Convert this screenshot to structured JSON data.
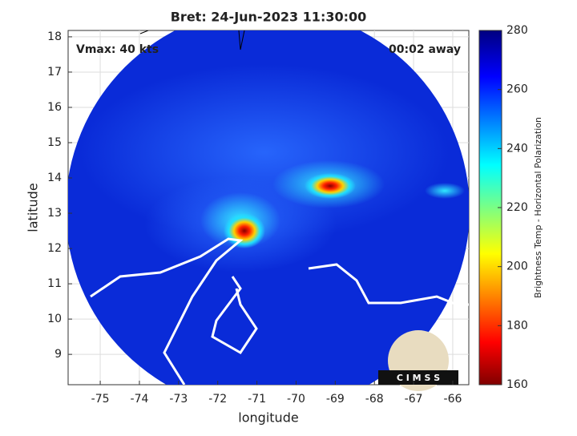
{
  "chart_data": {
    "type": "map",
    "title": "Bret: 24-Jun-2023 11:30:00",
    "xlabel": "longitude",
    "ylabel": "latitude",
    "annotations": [
      "Vmax: 40 kts",
      "00:02 away"
    ],
    "xlim": [
      -75.82,
      -65.59
    ],
    "ylim": [
      8.14,
      18.18
    ],
    "xticks": [
      -75,
      -74,
      -73,
      -72,
      -71,
      -70,
      -69,
      -68,
      -67,
      -66
    ],
    "yticks": [
      9,
      10,
      11,
      12,
      13,
      14,
      15,
      16,
      17,
      18
    ],
    "grid": true,
    "colorbar": {
      "label": "Brightness Temp - Horizontal Polarization",
      "lim": [
        160,
        280
      ],
      "ticks": [
        160,
        180,
        200,
        220,
        240,
        260,
        280
      ],
      "colormap": "jet"
    },
    "logo_text": "C I M S S"
  }
}
